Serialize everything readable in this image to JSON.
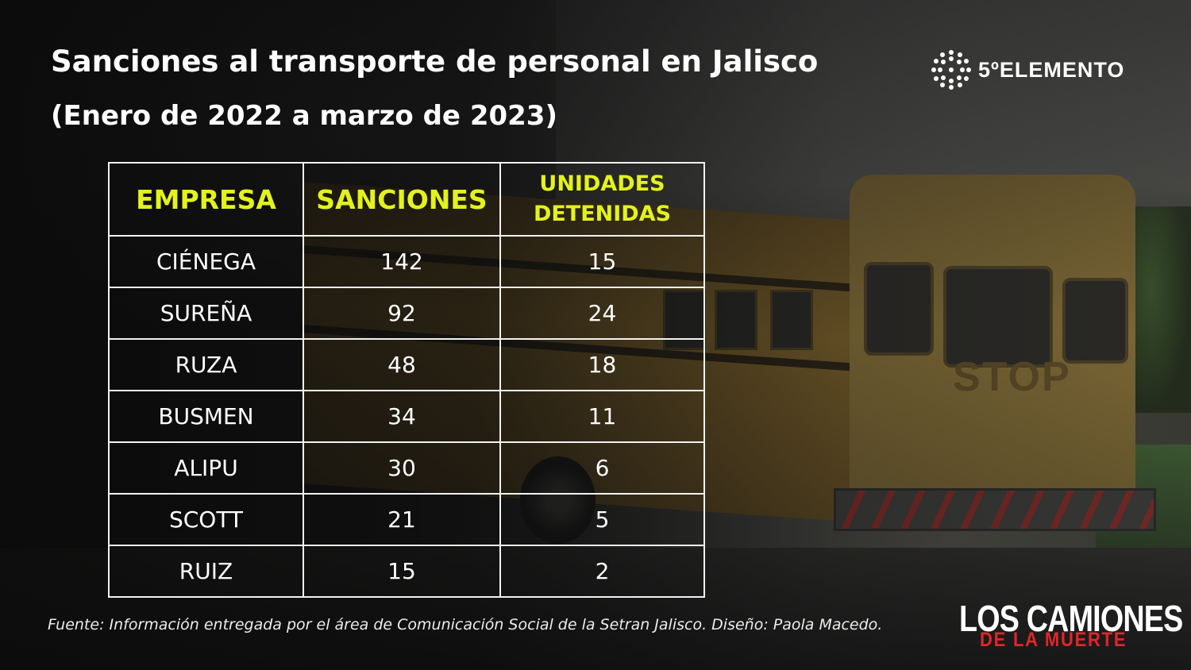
{
  "header": {
    "title": "Sanciones al transporte de personal en Jalisco",
    "subtitle": "(Enero de 2022 a marzo de 2023)"
  },
  "logo": {
    "text": "5ºELEMENTO",
    "icon": "dotted-circle-logo-icon"
  },
  "chart_data": {
    "type": "table",
    "columns": [
      "EMPRESA",
      "SANCIONES",
      "UNIDADES DETENIDAS"
    ],
    "rows": [
      {
        "empresa": "CIÉNEGA",
        "sanciones": "142",
        "unidades": "15"
      },
      {
        "empresa": "SUREÑA",
        "sanciones": "92",
        "unidades": "24"
      },
      {
        "empresa": "RUZA",
        "sanciones": "48",
        "unidades": "18"
      },
      {
        "empresa": "BUSMEN",
        "sanciones": "34",
        "unidades": "11"
      },
      {
        "empresa": "ALIPU",
        "sanciones": "30",
        "unidades": "6"
      },
      {
        "empresa": "SCOTT",
        "sanciones": "21",
        "unidades": "5"
      },
      {
        "empresa": "RUIZ",
        "sanciones": "15",
        "unidades": "2"
      }
    ]
  },
  "colors": {
    "header_text": "#e3f21c",
    "body_text": "#ffffff",
    "brand_red": "#e0262b"
  },
  "footer": {
    "source": "Fuente: Información entregada por el área de Comunicación Social de la Setran Jalisco. Diseño: Paola Macedo.",
    "brand_line1": "LOS CAMIONES",
    "brand_line2": "DE LA MUERTE"
  }
}
